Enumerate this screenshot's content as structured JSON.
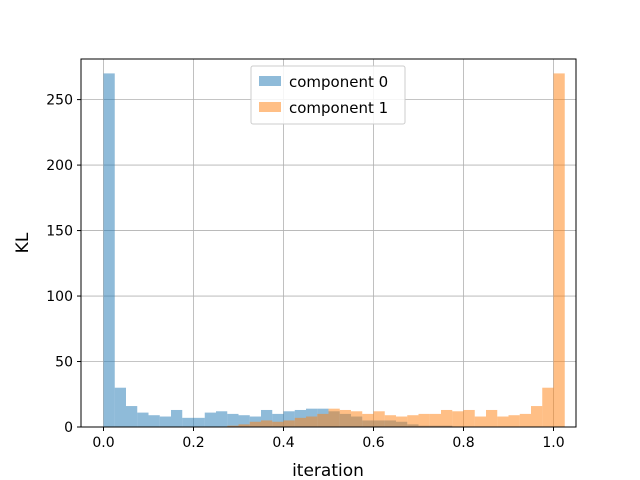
{
  "chart_data": {
    "type": "bar",
    "title": "",
    "xlabel": "iteration",
    "ylabel": "KL",
    "xlim": [
      -0.05,
      1.05
    ],
    "ylim": [
      0,
      281
    ],
    "bin_width": 0.025,
    "bin_start": 0.0,
    "xticks": [
      0.0,
      0.2,
      0.4,
      0.6,
      0.8,
      1.0
    ],
    "xtick_labels": [
      "0.0",
      "0.2",
      "0.4",
      "0.6",
      "0.8",
      "1.0"
    ],
    "yticks": [
      0,
      50,
      100,
      150,
      200,
      250
    ],
    "ytick_labels": [
      "0",
      "50",
      "100",
      "150",
      "200",
      "250"
    ],
    "grid": true,
    "legend_position": "top-center",
    "series": [
      {
        "name": "component 0",
        "color": "#1f77b4",
        "opacity": 0.5,
        "values": [
          270,
          30,
          16,
          11,
          9,
          8,
          13,
          7,
          7,
          11,
          12,
          10,
          9,
          8,
          13,
          10,
          12,
          13,
          14,
          14,
          12,
          10,
          8,
          5,
          5,
          5,
          4,
          2,
          1,
          1,
          1,
          0,
          0,
          0,
          0,
          0,
          0,
          0,
          0,
          0
        ]
      },
      {
        "name": "component 1",
        "color": "#ff7f0e",
        "opacity": 0.5,
        "values": [
          0,
          0,
          0,
          0,
          0,
          0,
          0,
          0,
          0,
          0,
          0,
          1,
          2,
          4,
          5,
          4,
          5,
          7,
          8,
          10,
          14,
          13,
          12,
          10,
          12,
          9,
          8,
          9,
          10,
          10,
          13,
          12,
          13,
          8,
          13,
          8,
          9,
          10,
          16,
          30,
          270
        ]
      }
    ]
  }
}
